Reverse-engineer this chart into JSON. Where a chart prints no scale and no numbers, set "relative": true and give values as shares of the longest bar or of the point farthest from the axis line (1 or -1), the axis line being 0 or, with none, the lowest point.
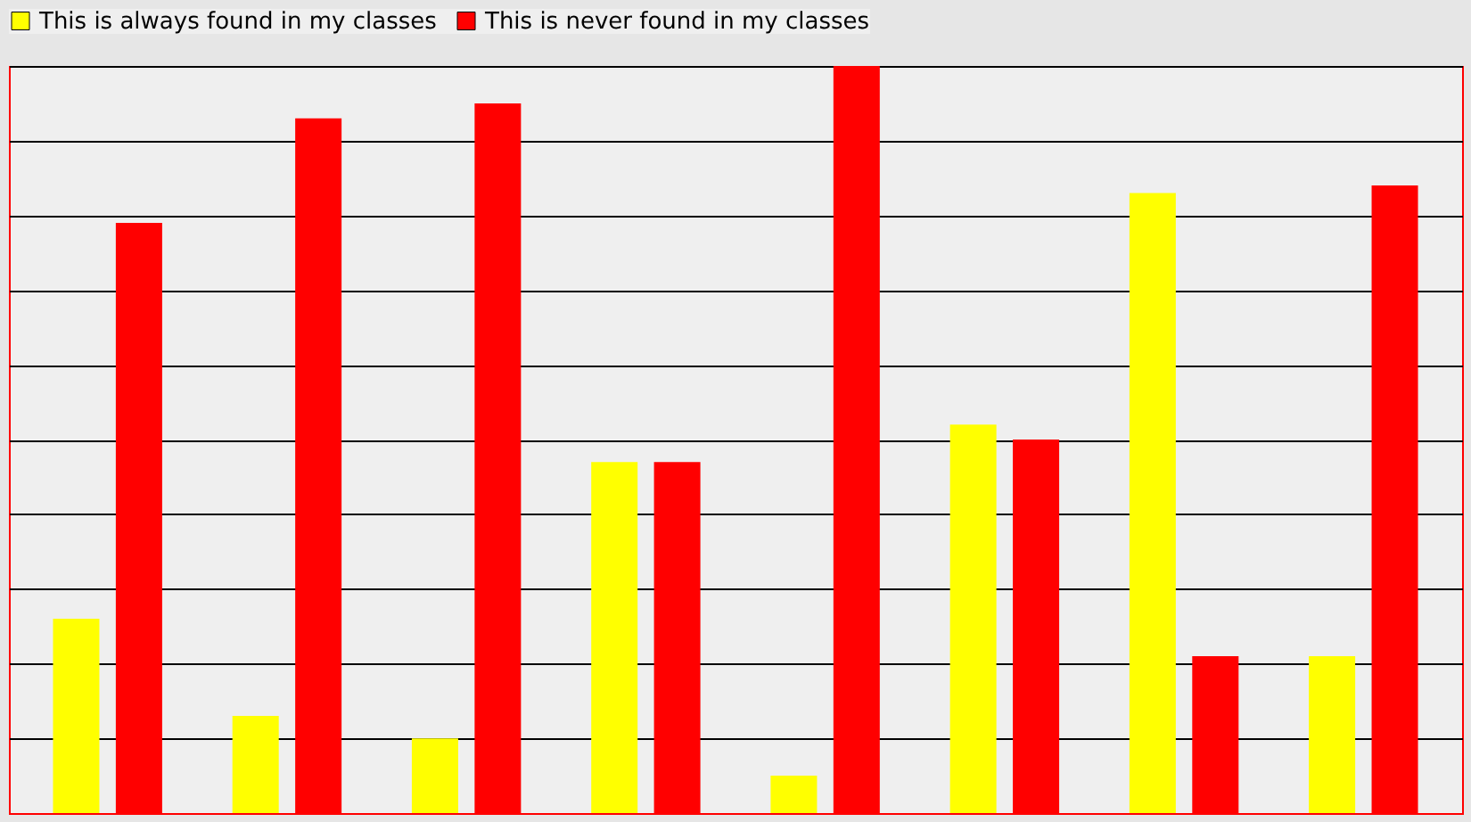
{
  "chart_data": {
    "type": "bar",
    "relative": true,
    "categories": [
      null,
      null,
      null,
      null,
      null,
      null,
      null,
      null
    ],
    "series": [
      {
        "name": "This is always found in my classes",
        "color": "#ffff00",
        "values": [
          0.26,
          0.13,
          0.1,
          0.47,
          0.05,
          0.52,
          0.83,
          0.21
        ]
      },
      {
        "name": "This is never found in my classes",
        "color": "#ff0000",
        "values": [
          0.79,
          0.93,
          0.95,
          0.47,
          1,
          0.5,
          0.21,
          0.84
        ]
      }
    ],
    "grid": "y",
    "legend": "top",
    "tick_labels": false
  }
}
